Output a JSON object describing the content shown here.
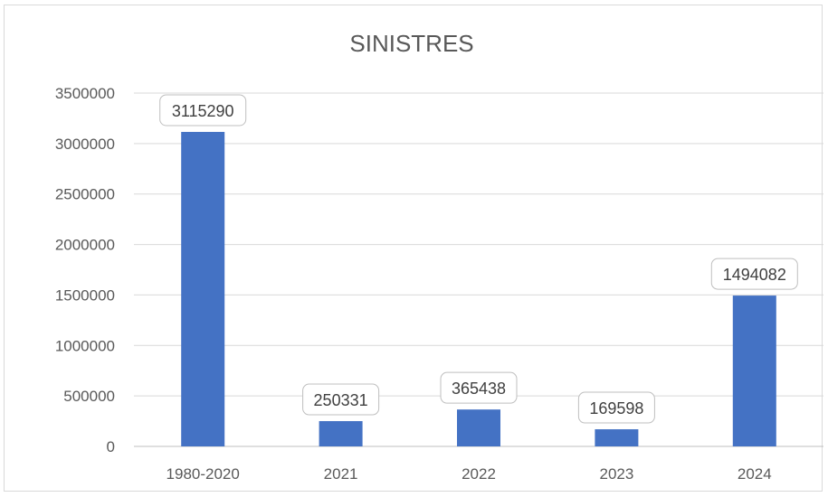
{
  "chart_data": {
    "type": "bar",
    "title": "SINISTRES",
    "xlabel": "",
    "ylabel": "",
    "categories": [
      "1980-2020",
      "2021",
      "2022",
      "2023",
      "2024"
    ],
    "values": [
      3115290,
      250331,
      365438,
      169598,
      1494082
    ],
    "value_labels": [
      "3115290",
      "250331",
      "365438",
      "169598",
      "1494082"
    ],
    "ylim": [
      0,
      3500000
    ],
    "yticks": [
      0,
      500000,
      1000000,
      1500000,
      2000000,
      2500000,
      3000000,
      3500000
    ],
    "ytick_labels": [
      "0",
      "500000",
      "1000000",
      "1500000",
      "2000000",
      "2500000",
      "3000000",
      "3500000"
    ],
    "grid": true,
    "legend": "none",
    "bar_color": "#4472c4",
    "gridline_color": "#d9d9d9",
    "text_color": "#595959"
  }
}
